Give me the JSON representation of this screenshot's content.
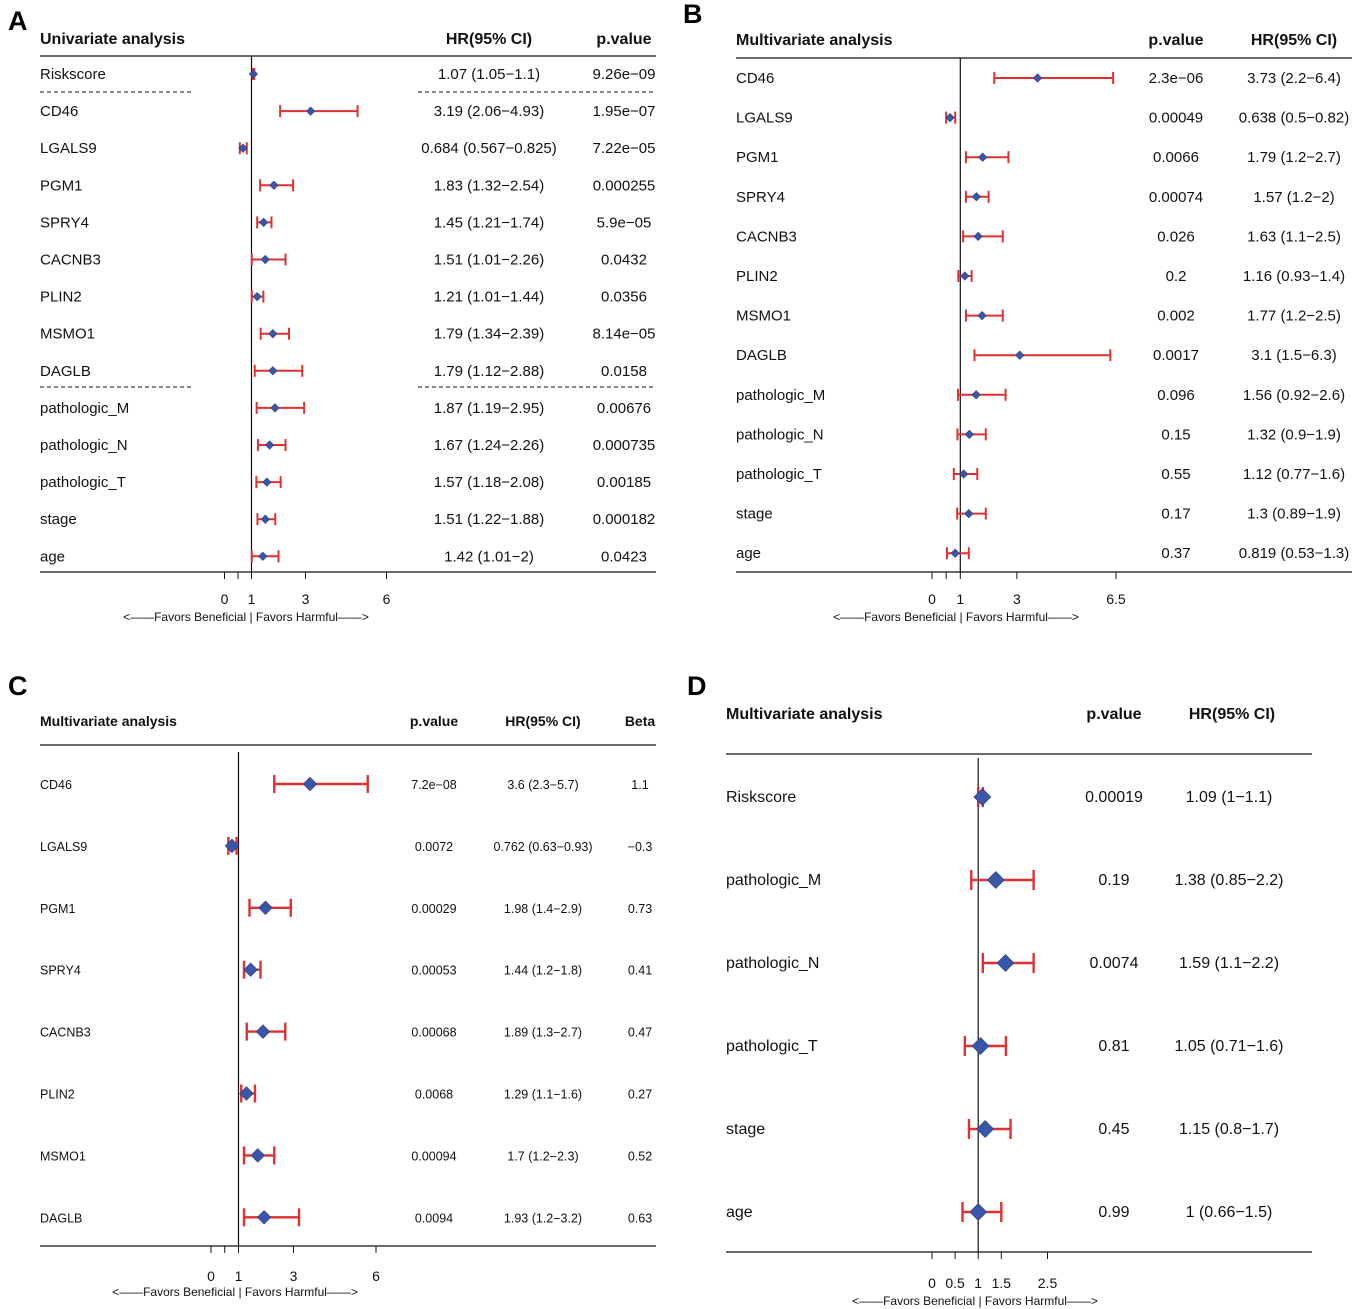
{
  "chart_data": [
    {
      "type": "forest",
      "panel": "A",
      "title": "Univariate analysis",
      "columns": [
        "HR(95% CI)",
        "p.value"
      ],
      "axis_ticks": [
        "0",
        "1",
        "3",
        "6"
      ],
      "axis_label": "<——Favors Beneficial | Favors Harmful——>",
      "rows": [
        {
          "name": "Riskscore",
          "hr": 1.07,
          "lo": 1.05,
          "hi": 1.1,
          "hr_text": "1.07 (1.05−1.1)",
          "p": "9.26e−09"
        },
        {
          "name": "CD46",
          "hr": 3.19,
          "lo": 2.06,
          "hi": 4.93,
          "hr_text": "3.19 (2.06−4.93)",
          "p": "1.95e−07"
        },
        {
          "name": "LGALS9",
          "hr": 0.684,
          "lo": 0.567,
          "hi": 0.825,
          "hr_text": "0.684 (0.567−0.825)",
          "p": "7.22e−05"
        },
        {
          "name": "PGM1",
          "hr": 1.83,
          "lo": 1.32,
          "hi": 2.54,
          "hr_text": "1.83 (1.32−2.54)",
          "p": "0.000255"
        },
        {
          "name": "SPRY4",
          "hr": 1.45,
          "lo": 1.21,
          "hi": 1.74,
          "hr_text": "1.45 (1.21−1.74)",
          "p": "5.9e−05"
        },
        {
          "name": "CACNB3",
          "hr": 1.51,
          "lo": 1.01,
          "hi": 2.26,
          "hr_text": "1.51 (1.01−2.26)",
          "p": "0.0432"
        },
        {
          "name": "PLIN2",
          "hr": 1.21,
          "lo": 1.01,
          "hi": 1.44,
          "hr_text": "1.21 (1.01−1.44)",
          "p": "0.0356"
        },
        {
          "name": "MSMO1",
          "hr": 1.79,
          "lo": 1.34,
          "hi": 2.39,
          "hr_text": "1.79 (1.34−2.39)",
          "p": "8.14e−05"
        },
        {
          "name": "DAGLB",
          "hr": 1.79,
          "lo": 1.12,
          "hi": 2.88,
          "hr_text": "1.79 (1.12−2.88)",
          "p": "0.0158"
        },
        {
          "name": "pathologic_M",
          "hr": 1.87,
          "lo": 1.19,
          "hi": 2.95,
          "hr_text": "1.87 (1.19−2.95)",
          "p": "0.00676"
        },
        {
          "name": "pathologic_N",
          "hr": 1.67,
          "lo": 1.24,
          "hi": 2.26,
          "hr_text": "1.67 (1.24−2.26)",
          "p": "0.000735"
        },
        {
          "name": "pathologic_T",
          "hr": 1.57,
          "lo": 1.18,
          "hi": 2.08,
          "hr_text": "1.57 (1.18−2.08)",
          "p": "0.00185"
        },
        {
          "name": "stage",
          "hr": 1.51,
          "lo": 1.22,
          "hi": 1.88,
          "hr_text": "1.51 (1.22−1.88)",
          "p": "0.000182"
        },
        {
          "name": "age",
          "hr": 1.42,
          "lo": 1.01,
          "hi": 2.0,
          "hr_text": "1.42 (1.01−2)",
          "p": "0.0423"
        }
      ]
    },
    {
      "type": "forest",
      "panel": "B",
      "title": "Multivariate analysis",
      "columns": [
        "p.value",
        "HR(95% CI)"
      ],
      "axis_ticks": [
        "0",
        "1",
        "3",
        "6.5"
      ],
      "axis_label": "<——Favors Beneficial | Favors Harmful——>",
      "rows": [
        {
          "name": "CD46",
          "hr": 3.73,
          "lo": 2.2,
          "hi": 6.4,
          "hr_text": "3.73 (2.2−6.4)",
          "p": "2.3e−06"
        },
        {
          "name": "LGALS9",
          "hr": 0.638,
          "lo": 0.5,
          "hi": 0.82,
          "hr_text": "0.638 (0.5−0.82)",
          "p": "0.00049"
        },
        {
          "name": "PGM1",
          "hr": 1.79,
          "lo": 1.2,
          "hi": 2.7,
          "hr_text": "1.79 (1.2−2.7)",
          "p": "0.0066"
        },
        {
          "name": "SPRY4",
          "hr": 1.57,
          "lo": 1.2,
          "hi": 2.0,
          "hr_text": "1.57 (1.2−2)",
          "p": "0.00074"
        },
        {
          "name": "CACNB3",
          "hr": 1.63,
          "lo": 1.1,
          "hi": 2.5,
          "hr_text": "1.63 (1.1−2.5)",
          "p": "0.026"
        },
        {
          "name": "PLIN2",
          "hr": 1.16,
          "lo": 0.93,
          "hi": 1.4,
          "hr_text": "1.16 (0.93−1.4)",
          "p": "0.2"
        },
        {
          "name": "MSMO1",
          "hr": 1.77,
          "lo": 1.2,
          "hi": 2.5,
          "hr_text": "1.77 (1.2−2.5)",
          "p": "0.002"
        },
        {
          "name": "DAGLB",
          "hr": 3.1,
          "lo": 1.5,
          "hi": 6.3,
          "hr_text": "3.1 (1.5−6.3)",
          "p": "0.0017"
        },
        {
          "name": "pathologic_M",
          "hr": 1.56,
          "lo": 0.92,
          "hi": 2.6,
          "hr_text": "1.56 (0.92−2.6)",
          "p": "0.096"
        },
        {
          "name": "pathologic_N",
          "hr": 1.32,
          "lo": 0.9,
          "hi": 1.9,
          "hr_text": "1.32 (0.9−1.9)",
          "p": "0.15"
        },
        {
          "name": "pathologic_T",
          "hr": 1.12,
          "lo": 0.77,
          "hi": 1.6,
          "hr_text": "1.12 (0.77−1.6)",
          "p": "0.55"
        },
        {
          "name": "stage",
          "hr": 1.3,
          "lo": 0.89,
          "hi": 1.9,
          "hr_text": "1.3 (0.89−1.9)",
          "p": "0.17"
        },
        {
          "name": "age",
          "hr": 0.819,
          "lo": 0.53,
          "hi": 1.3,
          "hr_text": "0.819 (0.53−1.3)",
          "p": "0.37"
        }
      ]
    },
    {
      "type": "forest",
      "panel": "C",
      "title": "Multivariate analysis",
      "columns": [
        "p.value",
        "HR(95% CI)",
        "Beta"
      ],
      "axis_ticks": [
        "0",
        "1",
        "3",
        "6"
      ],
      "axis_label": "<——Favors Beneficial | Favors Harmful——>",
      "rows": [
        {
          "name": "CD46",
          "hr": 3.6,
          "lo": 2.3,
          "hi": 5.7,
          "hr_text": "3.6 (2.3−5.7)",
          "p": "7.2e−08",
          "beta": "1.1"
        },
        {
          "name": "LGALS9",
          "hr": 0.762,
          "lo": 0.63,
          "hi": 0.93,
          "hr_text": "0.762 (0.63−0.93)",
          "p": "0.0072",
          "beta": "−0.3"
        },
        {
          "name": "PGM1",
          "hr": 1.98,
          "lo": 1.4,
          "hi": 2.9,
          "hr_text": "1.98 (1.4−2.9)",
          "p": "0.00029",
          "beta": "0.73"
        },
        {
          "name": "SPRY4",
          "hr": 1.44,
          "lo": 1.2,
          "hi": 1.8,
          "hr_text": "1.44 (1.2−1.8)",
          "p": "0.00053",
          "beta": "0.41"
        },
        {
          "name": "CACNB3",
          "hr": 1.89,
          "lo": 1.3,
          "hi": 2.7,
          "hr_text": "1.89 (1.3−2.7)",
          "p": "0.00068",
          "beta": "0.47"
        },
        {
          "name": "PLIN2",
          "hr": 1.29,
          "lo": 1.1,
          "hi": 1.6,
          "hr_text": "1.29 (1.1−1.6)",
          "p": "0.0068",
          "beta": "0.27"
        },
        {
          "name": "MSMO1",
          "hr": 1.7,
          "lo": 1.2,
          "hi": 2.3,
          "hr_text": "1.7 (1.2−2.3)",
          "p": "0.00094",
          "beta": "0.52"
        },
        {
          "name": "DAGLB",
          "hr": 1.93,
          "lo": 1.2,
          "hi": 3.2,
          "hr_text": "1.93 (1.2−3.2)",
          "p": "0.0094",
          "beta": "0.63"
        }
      ]
    },
    {
      "type": "forest",
      "panel": "D",
      "title": "Multivariate analysis",
      "columns": [
        "p.value",
        "HR(95% CI)"
      ],
      "axis_ticks": [
        "0",
        "0.5",
        "1",
        "1.5",
        "2.5"
      ],
      "axis_label": "<——Favors Beneficial | Favors Harmful——>",
      "rows": [
        {
          "name": "Riskscore",
          "hr": 1.09,
          "lo": 1.0,
          "hi": 1.1,
          "hr_text": "1.09 (1−1.1)",
          "p": "0.00019"
        },
        {
          "name": "pathologic_M",
          "hr": 1.38,
          "lo": 0.85,
          "hi": 2.2,
          "hr_text": "1.38 (0.85−2.2)",
          "p": "0.19"
        },
        {
          "name": "pathologic_N",
          "hr": 1.59,
          "lo": 1.1,
          "hi": 2.2,
          "hr_text": "1.59 (1.1−2.2)",
          "p": "0.0074"
        },
        {
          "name": "pathologic_T",
          "hr": 1.05,
          "lo": 0.71,
          "hi": 1.6,
          "hr_text": "1.05 (0.71−1.6)",
          "p": "0.81"
        },
        {
          "name": "stage",
          "hr": 1.15,
          "lo": 0.8,
          "hi": 1.7,
          "hr_text": "1.15 (0.8−1.7)",
          "p": "0.45"
        },
        {
          "name": "age",
          "hr": 1.0,
          "lo": 0.66,
          "hi": 1.5,
          "hr_text": "1 (0.66−1.5)",
          "p": "0.99"
        }
      ]
    }
  ],
  "colors": {
    "ci": "#e03131",
    "point": "#3a56a8",
    "ref": "#111111"
  }
}
